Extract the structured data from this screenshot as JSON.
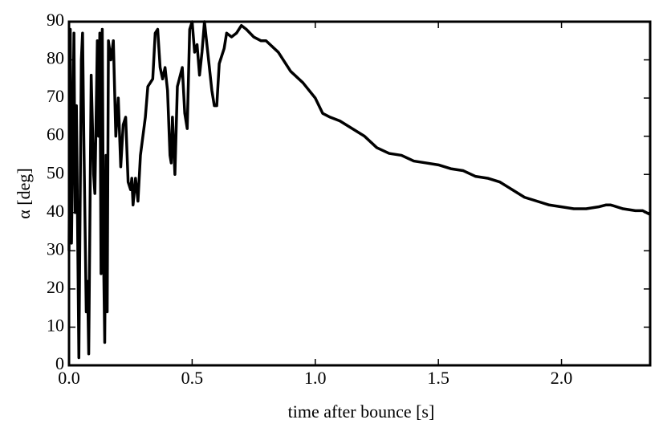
{
  "chart_data": {
    "type": "line",
    "xlabel": "time after bounce [s]",
    "ylabel": "α [deg]",
    "xlim": [
      0,
      2.36
    ],
    "ylim": [
      0,
      90
    ],
    "xticks": [
      {
        "value": 0,
        "label": "0.0"
      },
      {
        "value": 0.5,
        "label": "0.5"
      },
      {
        "value": 1,
        "label": "1.0"
      },
      {
        "value": 1.5,
        "label": "1.5"
      },
      {
        "value": 2,
        "label": "2.0"
      }
    ],
    "yticks": [
      0,
      10,
      20,
      30,
      40,
      50,
      60,
      70,
      80,
      90
    ],
    "series": [
      {
        "color": "#000000",
        "x": [
          0,
          0.005,
          0.01,
          0.02,
          0.025,
          0.03,
          0.04,
          0.05,
          0.055,
          0.06,
          0.07,
          0.075,
          0.08,
          0.09,
          0.1,
          0.105,
          0.115,
          0.12,
          0.125,
          0.13,
          0.135,
          0.14,
          0.145,
          0.15,
          0.155,
          0.16,
          0.17,
          0.18,
          0.19,
          0.2,
          0.21,
          0.22,
          0.23,
          0.24,
          0.25,
          0.255,
          0.26,
          0.27,
          0.28,
          0.29,
          0.31,
          0.32,
          0.34,
          0.35,
          0.36,
          0.37,
          0.38,
          0.39,
          0.4,
          0.41,
          0.415,
          0.42,
          0.43,
          0.44,
          0.46,
          0.47,
          0.48,
          0.49,
          0.5,
          0.51,
          0.52,
          0.53,
          0.54,
          0.55,
          0.56,
          0.58,
          0.59,
          0.6,
          0.61,
          0.63,
          0.64,
          0.66,
          0.68,
          0.7,
          0.72,
          0.75,
          0.78,
          0.8,
          0.85,
          0.9,
          0.95,
          1.0,
          1.03,
          1.06,
          1.1,
          1.15,
          1.2,
          1.25,
          1.3,
          1.35,
          1.4,
          1.45,
          1.5,
          1.55,
          1.6,
          1.65,
          1.7,
          1.75,
          1.8,
          1.85,
          1.9,
          1.95,
          2.0,
          2.05,
          2.1,
          2.15,
          2.18,
          2.2,
          2.25,
          2.3,
          2.33,
          2.36
        ],
        "values": [
          30,
          88,
          32,
          87,
          40,
          68,
          2,
          80,
          87,
          60,
          14,
          22,
          3,
          76,
          50,
          45,
          85,
          60,
          87,
          24,
          88,
          30,
          6,
          55,
          14,
          85,
          80,
          85,
          60,
          70,
          52,
          63,
          65,
          48,
          46,
          49,
          42,
          49,
          43,
          55,
          65,
          73,
          75,
          87,
          88,
          78,
          75,
          78,
          72,
          55,
          53,
          65,
          50,
          73,
          78,
          66,
          62,
          88,
          90,
          82,
          84,
          76,
          82,
          90,
          84,
          72,
          68,
          68,
          79,
          83,
          87,
          86,
          87,
          89,
          88,
          86,
          85,
          85,
          82,
          77,
          74,
          70,
          66,
          65,
          64,
          62,
          60,
          57,
          55.5,
          55,
          53.5,
          53,
          52.5,
          51.5,
          51,
          49.5,
          49,
          48,
          46,
          44,
          43,
          42,
          41.5,
          41,
          41,
          41.5,
          42,
          42,
          41,
          40.5,
          40.5,
          39.5
        ]
      }
    ]
  }
}
